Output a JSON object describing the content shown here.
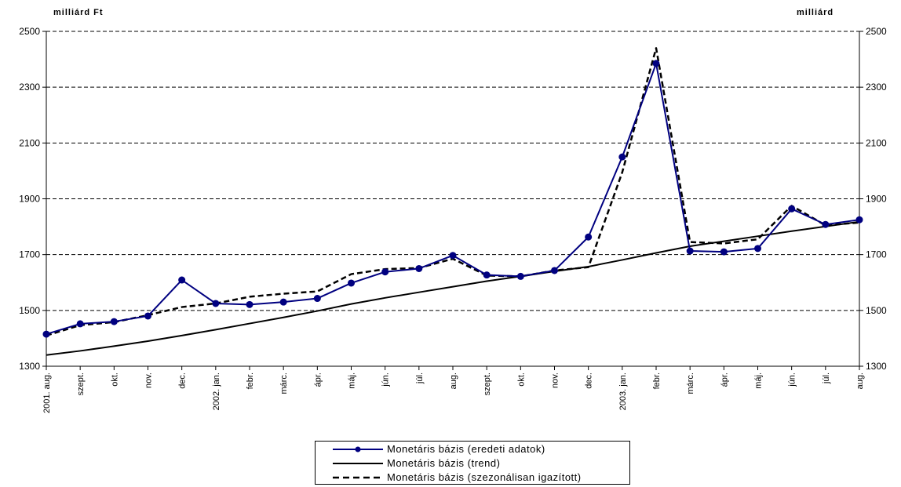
{
  "chart_data": {
    "type": "line",
    "title": "",
    "ylabel_left": "milliárd Ft",
    "ylabel_right": "milliárd Ft",
    "ylim": [
      1300,
      2500
    ],
    "yticks": [
      1300,
      1500,
      1700,
      1900,
      2100,
      2300,
      2500
    ],
    "grid": "horizontal dashed",
    "legend_position": "bottom",
    "categories": [
      "2001. aug.",
      "szept.",
      "okt.",
      "nov.",
      "dec.",
      "2002. jan.",
      "febr.",
      "márc.",
      "ápr.",
      "máj.",
      "jún.",
      "júl.",
      "aug.",
      "szept.",
      "okt.",
      "nov.",
      "dec.",
      "2003. jan.",
      "febr.",
      "márc.",
      "ápr.",
      "máj.",
      "jún.",
      "júl.",
      "aug."
    ],
    "series": [
      {
        "name": "Monetáris bázis (eredeti adatok)",
        "color": "#000080",
        "style": "solid-markers",
        "values": [
          1415,
          1452,
          1460,
          1480,
          1609,
          1525,
          1521,
          1530,
          1543,
          1598,
          1638,
          1650,
          1697,
          1627,
          1622,
          1643,
          1763,
          2050,
          2385,
          1713,
          1710,
          1722,
          1864,
          1808,
          1825
        ]
      },
      {
        "name": "Monetáris bázis (trend)",
        "color": "#000000",
        "style": "solid",
        "values": [
          1340,
          1355,
          1372,
          1390,
          1410,
          1431,
          1453,
          1475,
          1498,
          1523,
          1545,
          1565,
          1585,
          1605,
          1622,
          1640,
          1657,
          1681,
          1706,
          1730,
          1748,
          1766,
          1784,
          1801,
          1818
        ]
      },
      {
        "name": "Monetáris bázis (szezonálisan igazított)",
        "color": "#000000",
        "style": "dashed",
        "values": [
          1410,
          1447,
          1458,
          1483,
          1512,
          1525,
          1549,
          1560,
          1568,
          1630,
          1648,
          1652,
          1685,
          1625,
          1622,
          1643,
          1655,
          1995,
          2440,
          1745,
          1740,
          1755,
          1875,
          1805,
          1815
        ]
      }
    ]
  }
}
